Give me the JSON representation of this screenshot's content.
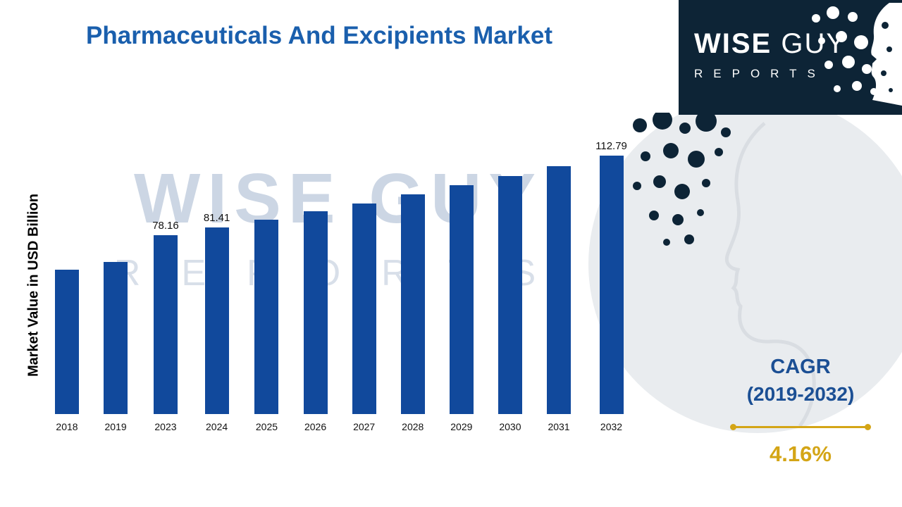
{
  "title": "Pharmaceuticals And Excipients Market",
  "logo": {
    "word1": "WISE",
    "word2": "GUY",
    "reports": "REPORTS"
  },
  "watermark": {
    "line1": "WISE GUY",
    "line2": "REPORTS"
  },
  "cagr": {
    "label": "CAGR",
    "range": "(2019-2032)",
    "value": "4.16%"
  },
  "colors": {
    "bar": "#11499c",
    "title_blue": "#1a5fad",
    "cagr_blue": "#1b4f94",
    "gold": "#d4a516",
    "logo_navy": "#0d2436",
    "circle_gray": "#e9ecef"
  },
  "chart_data": {
    "type": "bar",
    "title": "Pharmaceuticals And Excipients Market",
    "ylabel": "Market Value in USD Billion",
    "xlabel": "",
    "categories": [
      "2018",
      "2019",
      "2023",
      "2024",
      "2025",
      "2026",
      "2027",
      "2028",
      "2029",
      "2030",
      "2031",
      "2032"
    ],
    "values": [
      63.0,
      66.5,
      78.16,
      81.41,
      84.8,
      88.4,
      92.0,
      95.9,
      99.8,
      104.0,
      108.3,
      112.79
    ],
    "data_labels": [
      "",
      "",
      "78.16",
      "81.41",
      "",
      "",
      "",
      "",
      "",
      "",
      "",
      "112.79"
    ],
    "ylim": [
      0,
      120
    ],
    "grid": false,
    "legend": false,
    "bar_color": "#11499c"
  }
}
